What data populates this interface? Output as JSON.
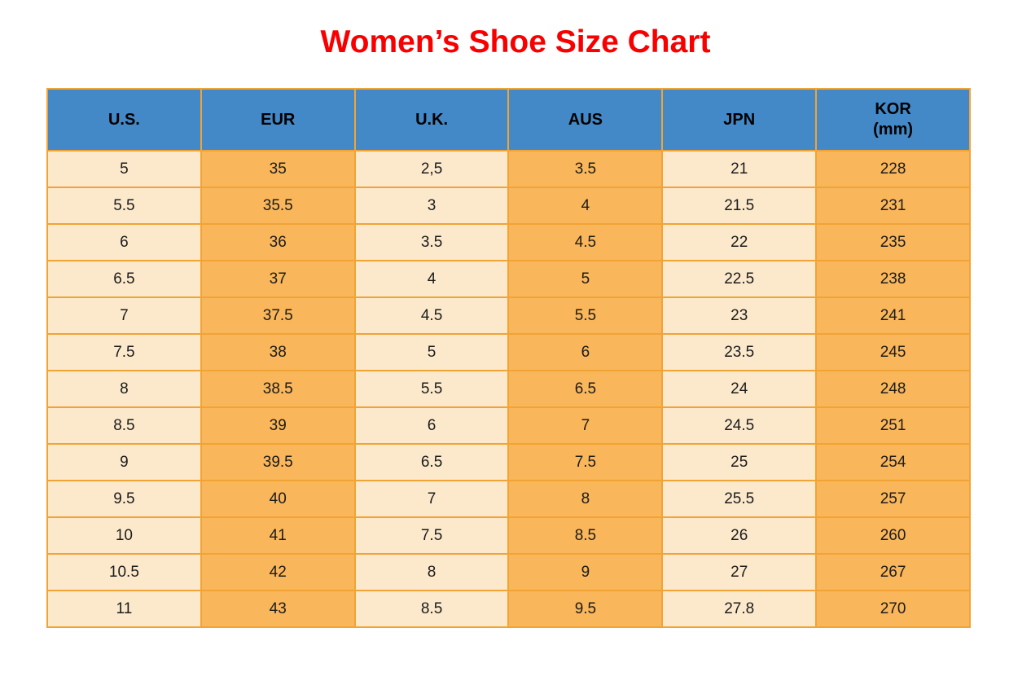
{
  "page": {
    "title": "Women’s Shoe Size Chart"
  },
  "style": {
    "title-red": "#f80000",
    "header-blue": "#4389c7",
    "cell-cream": "#fce9cc",
    "cell-orange": "#f9b65a",
    "border-orange": "#f1a435",
    "cell-text": "#1c1c1c"
  },
  "chart_data": {
    "type": "table",
    "title": "Women’s Shoe Size Chart",
    "columns": [
      {
        "label": "U.S.",
        "sub": "",
        "tone": "cream"
      },
      {
        "label": "EUR",
        "sub": "",
        "tone": "orange"
      },
      {
        "label": "U.K.",
        "sub": "",
        "tone": "cream"
      },
      {
        "label": "AUS",
        "sub": "",
        "tone": "orange"
      },
      {
        "label": "JPN",
        "sub": "",
        "tone": "cream"
      },
      {
        "label": "KOR",
        "sub": "(mm)",
        "tone": "orange"
      }
    ],
    "rows": [
      [
        "5",
        "35",
        "2,5",
        "3.5",
        "21",
        "228"
      ],
      [
        "5.5",
        "35.5",
        "3",
        "4",
        "21.5",
        "231"
      ],
      [
        "6",
        "36",
        "3.5",
        "4.5",
        "22",
        "235"
      ],
      [
        "6.5",
        "37",
        "4",
        "5",
        "22.5",
        "238"
      ],
      [
        "7",
        "37.5",
        "4.5",
        "5.5",
        "23",
        "241"
      ],
      [
        "7.5",
        "38",
        "5",
        "6",
        "23.5",
        "245"
      ],
      [
        "8",
        "38.5",
        "5.5",
        "6.5",
        "24",
        "248"
      ],
      [
        "8.5",
        "39",
        "6",
        "7",
        "24.5",
        "251"
      ],
      [
        "9",
        "39.5",
        "6.5",
        "7.5",
        "25",
        "254"
      ],
      [
        "9.5",
        "40",
        "7",
        "8",
        "25.5",
        "257"
      ],
      [
        "10",
        "41",
        "7.5",
        "8.5",
        "26",
        "260"
      ],
      [
        "10.5",
        "42",
        "8",
        "9",
        "27",
        "267"
      ],
      [
        "11",
        "43",
        "8.5",
        "9.5",
        "27.8",
        "270"
      ]
    ]
  }
}
